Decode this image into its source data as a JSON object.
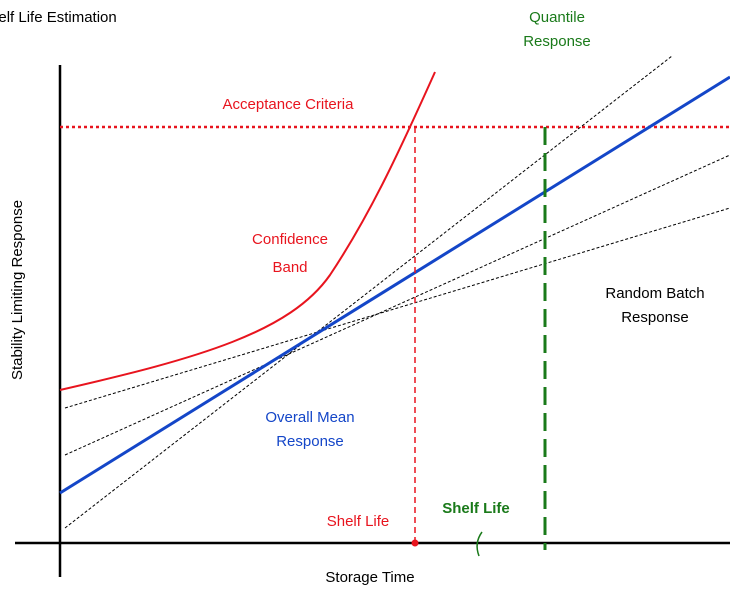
{
  "title": "Shelf Life Estimation",
  "labels": {
    "quantile_response": [
      "Quantile",
      "Response"
    ],
    "acceptance_criteria": "Acceptance Criteria",
    "confidence_band": [
      "Confidence",
      "Band"
    ],
    "random_batch_response": [
      "Random Batch",
      "Response"
    ],
    "overall_mean_response": [
      "Overall Mean",
      "Response"
    ],
    "shelf_life_confidence": "Shelf Life",
    "shelf_life_quantile": "Shelf Life",
    "x_axis": "Storage Time",
    "y_axis": "Stability Limiting Response"
  }
}
